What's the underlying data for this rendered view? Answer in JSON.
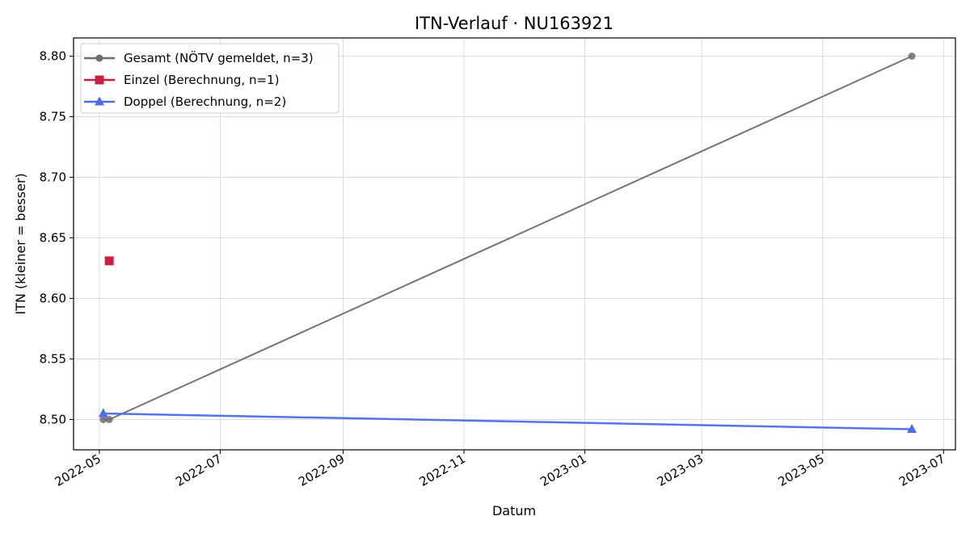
{
  "chart_data": {
    "type": "line",
    "title": "ITN-Verlauf · NU163921",
    "xlabel": "Datum",
    "ylabel": "ITN  (kleiner = besser)",
    "x_ticks": [
      "2022-05",
      "2022-07",
      "2022-09",
      "2022-11",
      "2023-01",
      "2023-03",
      "2023-05",
      "2023-07"
    ],
    "y_ticks": [
      "8.50",
      "8.55",
      "8.60",
      "8.65",
      "8.70",
      "8.75",
      "8.80"
    ],
    "xlim": [
      "2022-04-18",
      "2023-07-07"
    ],
    "ylim": [
      8.475,
      8.815
    ],
    "grid": true,
    "legend_position": "top-left",
    "series": [
      {
        "name": "Gesamt (NÖTV gemeldet, n=3)",
        "color": "#6e6e6e",
        "marker": "circle",
        "points": [
          {
            "x": "2022-05-03",
            "y": 8.5
          },
          {
            "x": "2022-05-06",
            "y": 8.5
          },
          {
            "x": "2023-06-15",
            "y": 8.8
          }
        ]
      },
      {
        "name": "Einzel (Berechnung, n=1)",
        "color": "#c8203e",
        "marker": "square",
        "points": [
          {
            "x": "2022-05-06",
            "y": 8.631
          }
        ]
      },
      {
        "name": "Doppel (Berechnung, n=2)",
        "color": "#4a6ee8",
        "marker": "triangle",
        "points": [
          {
            "x": "2022-05-03",
            "y": 8.505
          },
          {
            "x": "2023-06-15",
            "y": 8.492
          }
        ]
      }
    ]
  }
}
